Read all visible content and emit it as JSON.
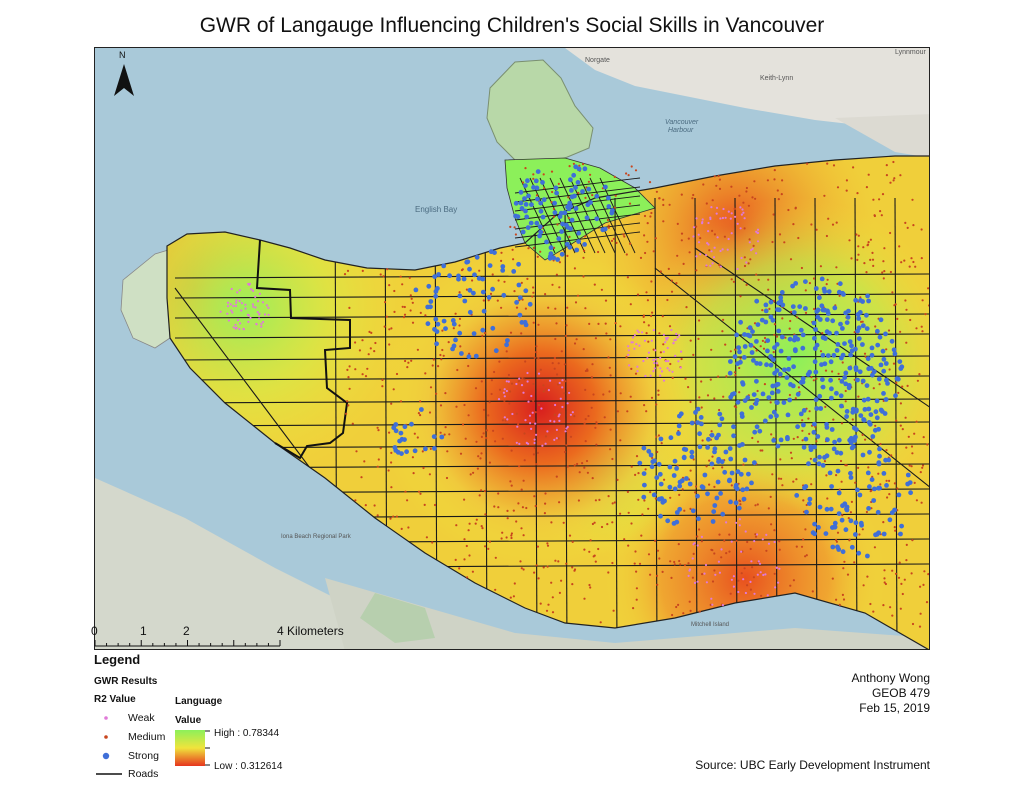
{
  "title": "GWR of Langauge Influencing Children's Social Skills in Vancouver",
  "north_label": "N",
  "scale_bar": {
    "ticks": [
      "0",
      "1",
      "2",
      "4 Kilometers"
    ]
  },
  "legend": {
    "heading": "Legend",
    "gwr_results": "GWR Results",
    "r2_heading": "R2 Value",
    "points": [
      {
        "label": "Weak",
        "color": "#e07ad8"
      },
      {
        "label": "Medium",
        "color": "#c8461e"
      },
      {
        "label": "Strong",
        "color": "#3f6fd8"
      }
    ],
    "roads_label": "Roads",
    "language_heading_line1": "Language",
    "language_heading_line2": "Value",
    "ramp_high": "High : 0.78344",
    "ramp_low": "Low : 0.312614",
    "ramp_colors": {
      "high": "#8cf05a",
      "mid": "#f0e43c",
      "low": "#e6351e"
    }
  },
  "credits": {
    "author": "Anthony Wong",
    "course": "GEOB 479",
    "date": "Feb 15, 2019",
    "source": "Source: UBC Early Development Instrument"
  },
  "basemap_labels": {
    "english_bay": "English Bay",
    "vancouver_harbour_1": "Vancouver",
    "vancouver_harbour_2": "Harbour",
    "norgate": "Norgate",
    "keith_lynn": "Keith-Lynn",
    "lynnmour": "Lynnmour",
    "mitchell_island": "Mitchell Island",
    "iona_beach": "Iona Beach Regional Park"
  }
}
